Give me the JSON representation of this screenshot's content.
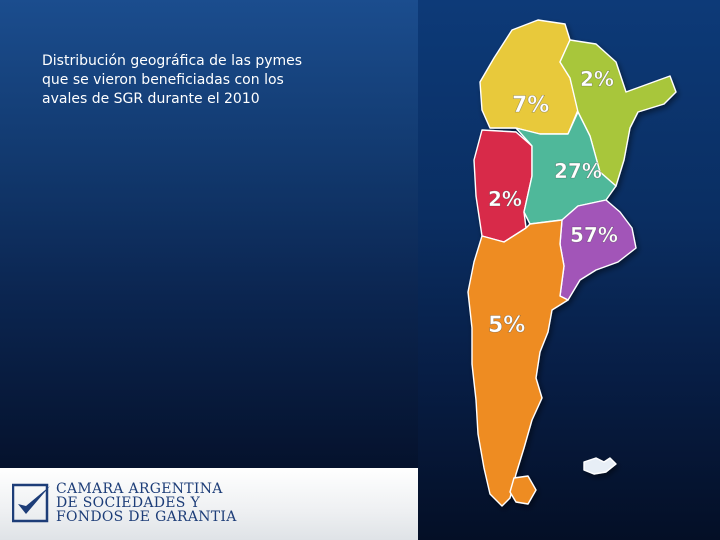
{
  "caption": {
    "line1": "Distribución geográfica de las pymes",
    "line2": "que se vieron beneficiadas con los",
    "line3": "avales de SGR durante el 2010"
  },
  "map": {
    "regions": [
      {
        "id": "noa",
        "label": "7%",
        "color": "#e8c93a"
      },
      {
        "id": "nea",
        "label": "2%",
        "color": "#a8c63a"
      },
      {
        "id": "cuyo",
        "label": "2%",
        "color": "#d82a4a"
      },
      {
        "id": "centro",
        "label": "27%",
        "color": "#4fb89a"
      },
      {
        "id": "pampeana",
        "label": "57%",
        "color": "#a255b8"
      },
      {
        "id": "patagonia",
        "label": "5%",
        "color": "#ee8c24"
      }
    ]
  },
  "logo": {
    "line1": "CAMARA ARGENTINA",
    "line2": "DE SOCIEDADES Y",
    "line3": "FONDOS DE GARANTIA"
  }
}
